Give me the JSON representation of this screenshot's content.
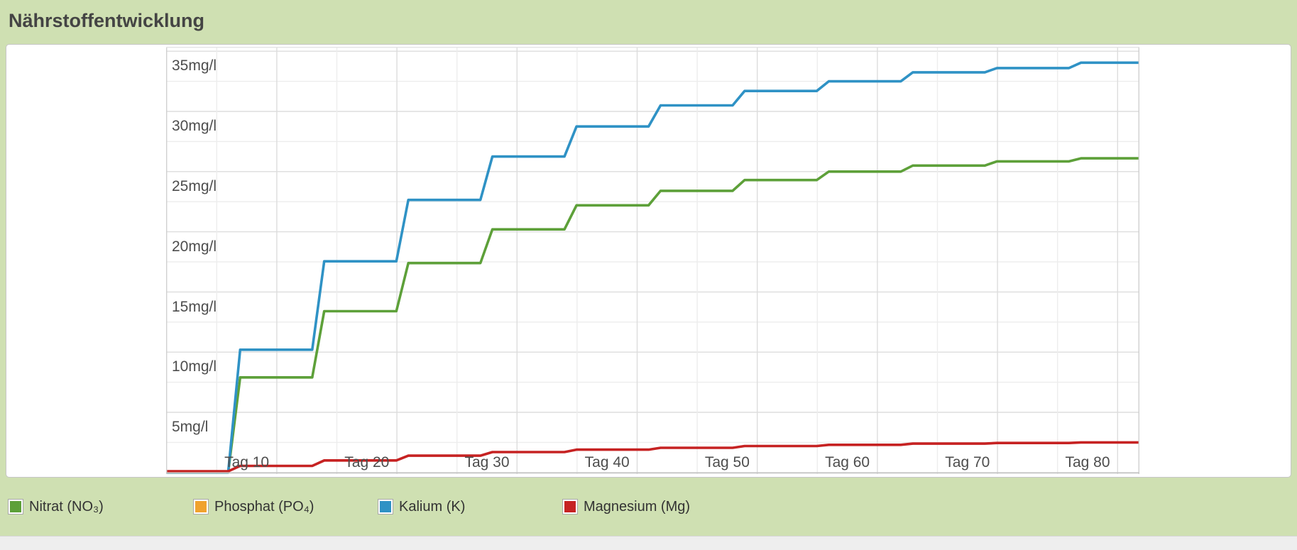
{
  "title": "Nährstoffentwicklung",
  "colors": {
    "page_background": "#cfe0b2",
    "card_background": "#ffffff",
    "card_border": "#c6c6c6",
    "grid_minor": "#ededed",
    "grid_major": "#dddddd",
    "axis_border": "#c4c4c4",
    "label_text": "#4d4d4d",
    "title_text": "#444444",
    "nitrat": "#5da039",
    "phosphat": "#f0a22e",
    "kalium": "#2f92c5",
    "magnesium": "#c62222"
  },
  "chart_data": {
    "type": "line",
    "title": "Nährstoffentwicklung",
    "x_unit": "Tag",
    "y_unit": "mg/l",
    "x_range": [
      3.3,
      84.3
    ],
    "y_range": [
      -0.13,
      35.37
    ],
    "x_grid_interval": 5,
    "x_grid_offset": 2.5,
    "y_grid_interval": 2.5,
    "grid": true,
    "legend_position": "bottom",
    "y_ticks": {
      "values": [
        35,
        30,
        25,
        20,
        15,
        10,
        5
      ],
      "labels": [
        "35mg/l",
        "30mg/l",
        "25mg/l",
        "20mg/l",
        "15mg/l",
        "10mg/l",
        "5mg/l"
      ]
    },
    "x_ticks": {
      "values": [
        10,
        20,
        30,
        40,
        50,
        60,
        70,
        80
      ],
      "labels": [
        "Tag 10",
        "Tag 20",
        "Tag 30",
        "Tag 40",
        "Tag 50",
        "Tag 60",
        "Tag 70",
        "Tag 80"
      ]
    },
    "step_days": [
      9,
      16,
      23,
      30,
      37,
      44,
      51,
      58,
      65,
      72,
      79
    ],
    "step_ramp_days": 1,
    "series": [
      {
        "key": "nitrat",
        "name": "Nitrat (NO₃)",
        "color": "#5da039",
        "visible": true,
        "levels": [
          0,
          7.9,
          13.4,
          17.4,
          20.2,
          22.2,
          23.4,
          24.3,
          25.0,
          25.5,
          25.85,
          26.1
        ]
      },
      {
        "key": "phosphat",
        "name": "Phosphat (PO₄)",
        "color": "#f0a22e",
        "visible": false,
        "levels": [
          0,
          0,
          0,
          0,
          0,
          0,
          0,
          0,
          0,
          0,
          0,
          0
        ]
      },
      {
        "key": "kalium",
        "name": "Kalium (K)",
        "color": "#2f92c5",
        "visible": true,
        "levels": [
          0,
          10.2,
          17.55,
          22.65,
          26.25,
          28.75,
          30.5,
          31.7,
          32.5,
          33.25,
          33.6,
          34.05
        ]
      },
      {
        "key": "magnesium",
        "name": "Magnesium (Mg)",
        "color": "#c62222",
        "visible": true,
        "levels": [
          0.1,
          0.55,
          1.0,
          1.4,
          1.7,
          1.9,
          2.05,
          2.2,
          2.3,
          2.4,
          2.45,
          2.5
        ]
      }
    ]
  }
}
